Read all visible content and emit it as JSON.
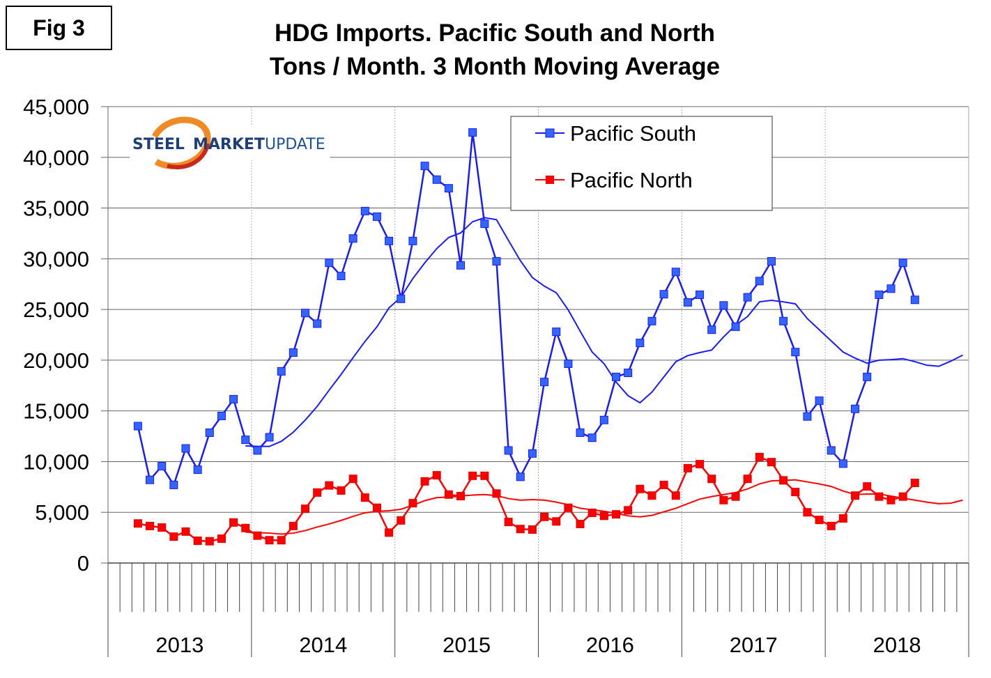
{
  "figure_label": "Fig 3",
  "logo_text": {
    "part1": "STEEL",
    "part2": "MARKET",
    "part3": "UPDATE"
  },
  "chart_data": {
    "type": "line",
    "title": "HDG Imports. Pacific South and North",
    "subtitle": "Tons / Month. 3 Month Moving Average",
    "xlabel": "",
    "ylabel": "",
    "ylim": [
      0,
      45000
    ],
    "yticks": [
      "0",
      "5,000",
      "10,000",
      "15,000",
      "20,000",
      "25,000",
      "30,000",
      "35,000",
      "40,000",
      "45,000"
    ],
    "x_period": "monthly, Jan 2013 - Dec 2018",
    "year_labels": [
      "2013",
      "2014",
      "2015",
      "2016",
      "2017",
      "2018"
    ],
    "grid": "horizontal solid, vertical dotted at year boundaries",
    "legend_position": "top-center",
    "series": [
      {
        "name": "Pacific South",
        "color": "#1a1aff",
        "marker_color": "#3366ff",
        "start_month": "2013-03",
        "values": [
          13500,
          8200,
          9550,
          7700,
          11300,
          9200,
          12850,
          14500,
          16150,
          12150,
          11100,
          12400,
          18900,
          20750,
          24650,
          23600,
          29600,
          28300,
          32000,
          34700,
          34150,
          31750,
          26050,
          31750,
          39150,
          37800,
          36950,
          29350,
          42450,
          33450,
          29750,
          11100,
          8500,
          10800,
          17850,
          22800,
          19650,
          12850,
          12350,
          14100,
          18350,
          18750,
          21700,
          23850,
          26500,
          28700,
          25700,
          26450,
          23000,
          25400,
          23300,
          26200,
          27800,
          29750,
          23850,
          20800,
          14450,
          16000,
          11100,
          9800,
          15200,
          18350,
          26450,
          27050,
          29600,
          25950
        ],
        "moving_average_start_month": "2013-12",
        "moving_average": [
          11550,
          11500,
          11500,
          12000,
          12900,
          14100,
          15450,
          17050,
          18600,
          20250,
          21850,
          23300,
          25150,
          26200,
          28050,
          29600,
          31000,
          32100,
          32550,
          33650,
          34050,
          33850,
          31800,
          29800,
          28150,
          27300,
          26650,
          24950,
          22850,
          20800,
          19650,
          17850,
          16500,
          15800,
          16850,
          18350,
          19850,
          20450,
          20750,
          21000,
          22300,
          23450,
          24300,
          25750,
          25900,
          25750,
          25550,
          24100,
          23000,
          21900,
          20800,
          20200,
          19700,
          20000,
          20050,
          20150,
          19850,
          19500,
          19400,
          19900,
          20500
        ]
      },
      {
        "name": "Pacific North",
        "color": "#ff0000",
        "marker_color": "#ff0000",
        "start_month": "2013-03",
        "values": [
          3900,
          3650,
          3500,
          2600,
          3100,
          2200,
          2150,
          2400,
          4000,
          3450,
          2700,
          2250,
          2250,
          3650,
          5350,
          6950,
          7650,
          7150,
          8300,
          6450,
          5450,
          3000,
          4200,
          5900,
          8050,
          8650,
          6750,
          6600,
          8600,
          8600,
          6850,
          4050,
          3350,
          3300,
          4550,
          4100,
          5450,
          3850,
          4950,
          4650,
          4800,
          5200,
          7300,
          6650,
          7700,
          6650,
          9350,
          9750,
          8300,
          6200,
          6550,
          8300,
          10450,
          9950,
          8150,
          7000,
          5000,
          4250,
          3650,
          4400,
          6650,
          7550,
          6550,
          6200,
          6550,
          7900
        ],
        "moving_average_start_month": "2013-12",
        "moving_average": [
          3050,
          3000,
          2950,
          2850,
          2950,
          3200,
          3550,
          3850,
          4200,
          4600,
          4950,
          5100,
          5150,
          5300,
          5700,
          6150,
          6450,
          6500,
          6600,
          6700,
          6750,
          6650,
          6350,
          6200,
          6250,
          6200,
          6000,
          5750,
          5400,
          5250,
          5100,
          4900,
          4650,
          4550,
          4700,
          5050,
          5400,
          5850,
          6300,
          6550,
          6750,
          6950,
          7300,
          7800,
          8100,
          8150,
          8200,
          8000,
          7800,
          7550,
          7100,
          6750,
          6800,
          6800,
          6600,
          6400,
          6200,
          6000,
          5850,
          5900,
          6200
        ]
      }
    ]
  }
}
